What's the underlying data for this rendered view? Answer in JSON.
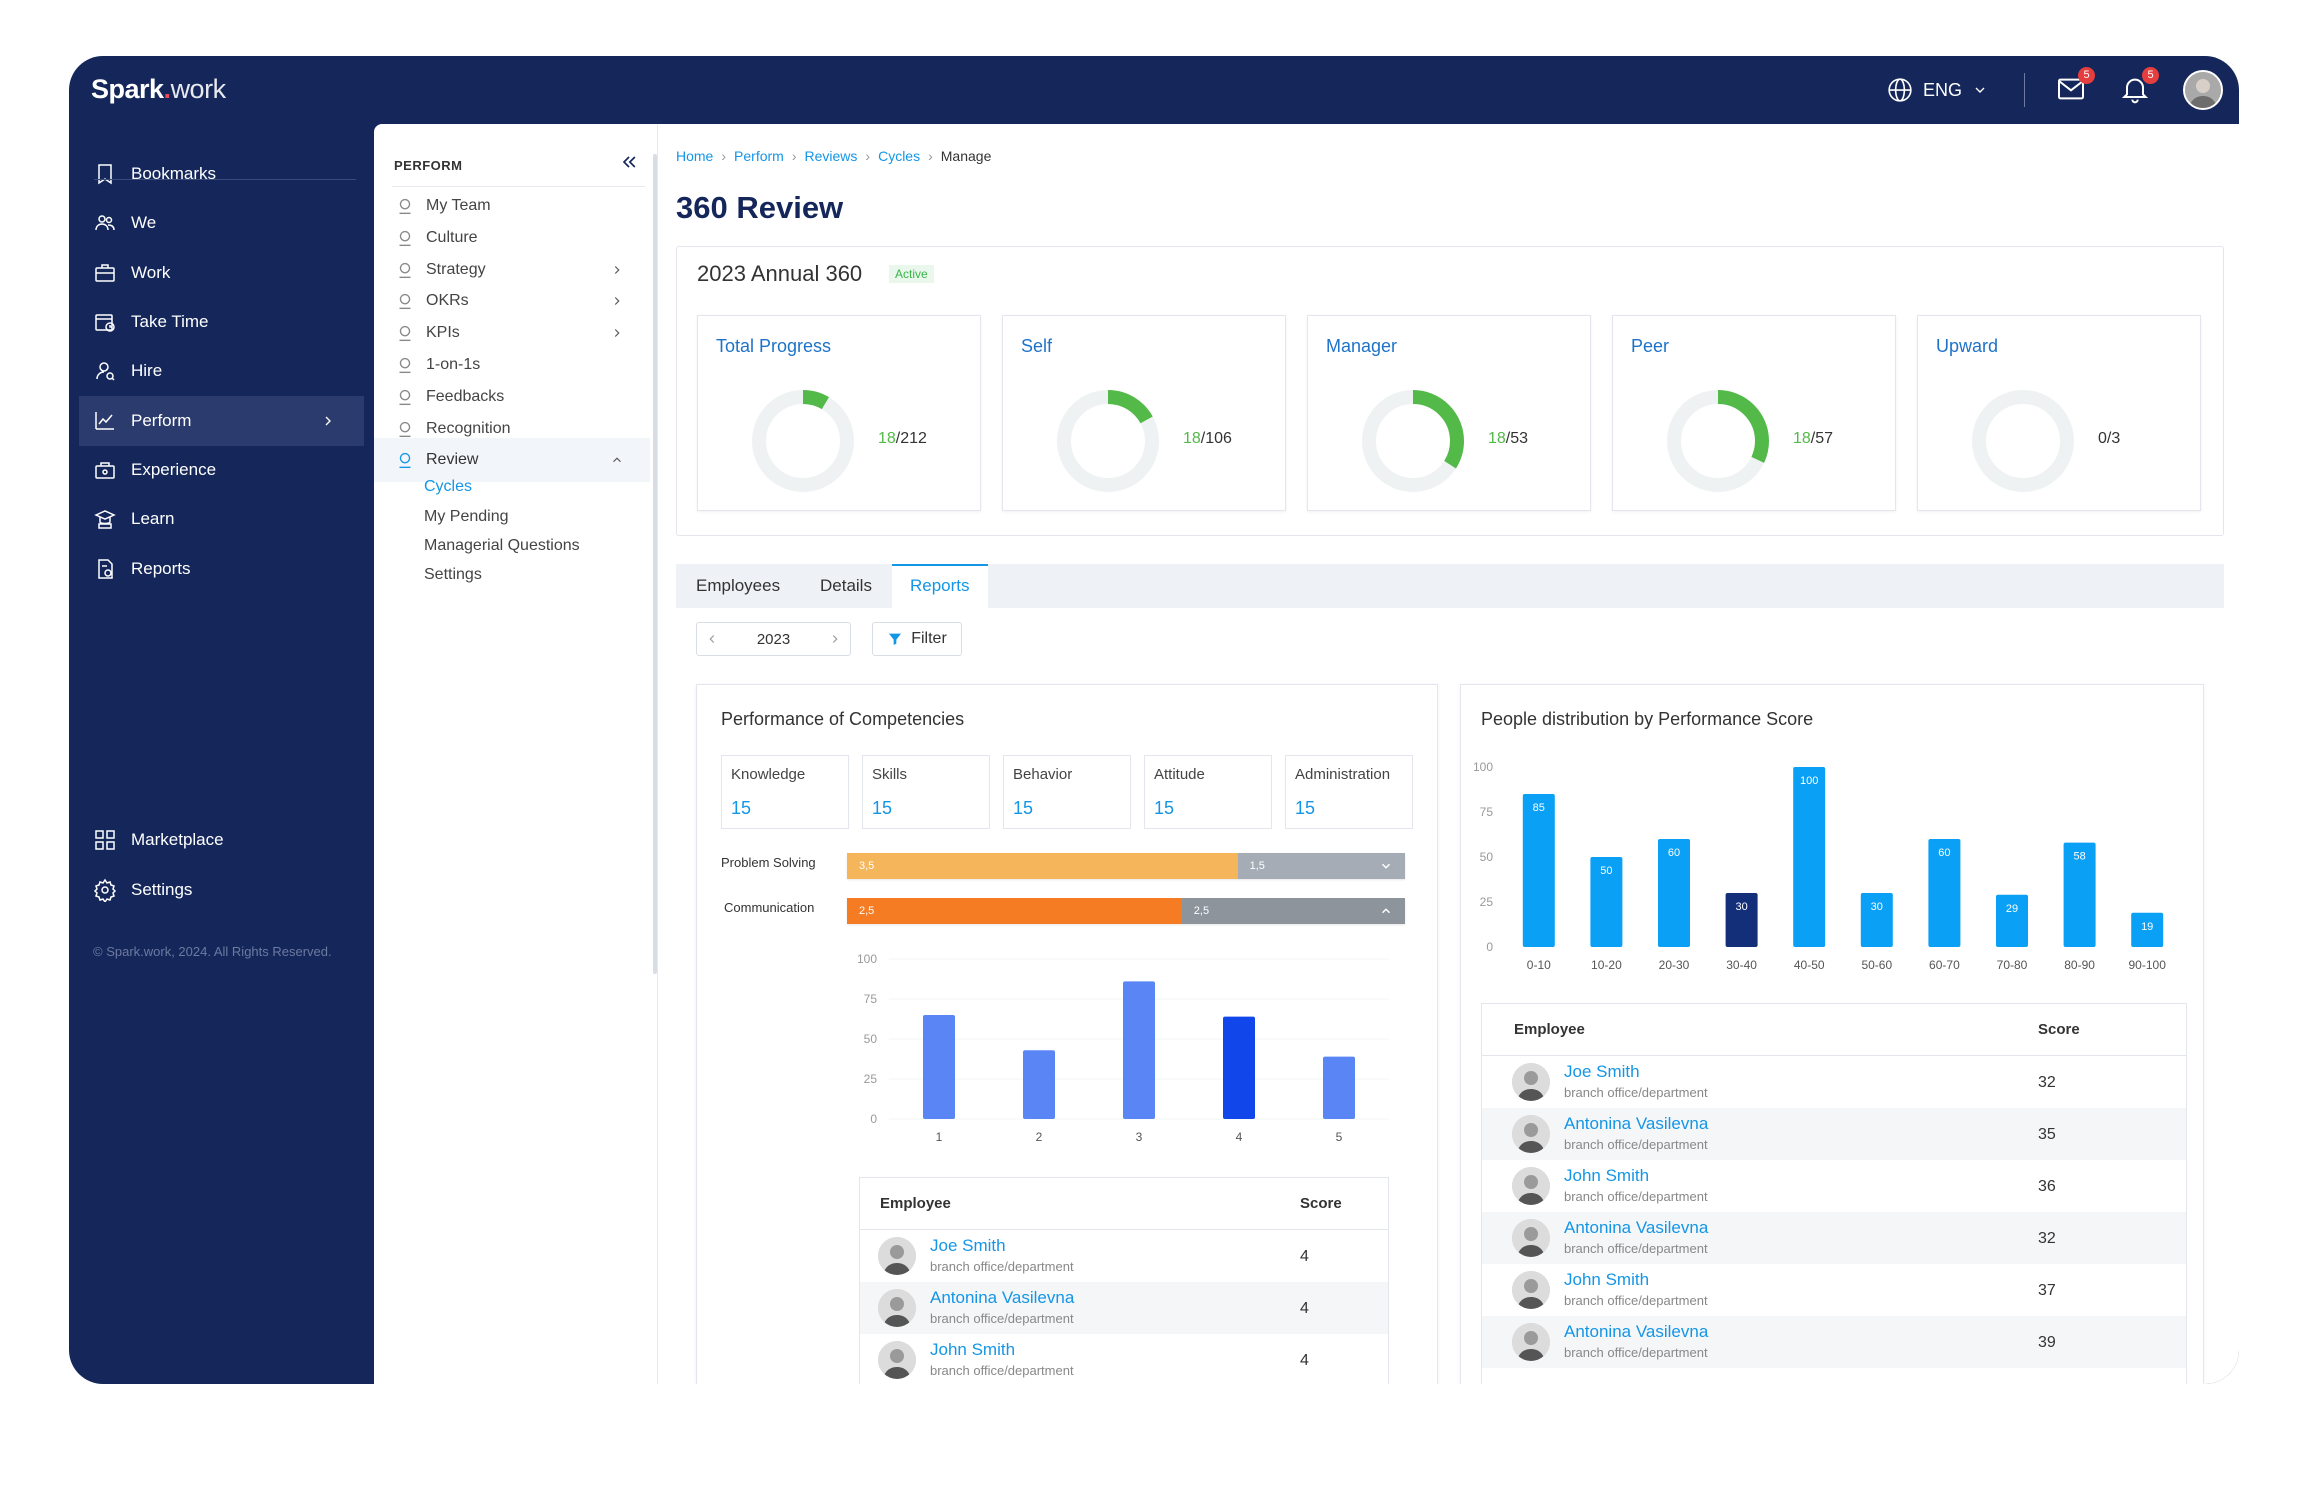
{
  "app": {
    "logo_main": "Spark",
    "logo_dot": ".",
    "logo_sub": "work"
  },
  "topbar": {
    "language": "ENG",
    "mail_badge": "5",
    "bell_badge": "5"
  },
  "nav": {
    "items": [
      {
        "label": "Bookmarks",
        "icon": "bookmark-icon"
      },
      {
        "label": "We",
        "icon": "people-icon"
      },
      {
        "label": "Work",
        "icon": "briefcase-icon"
      },
      {
        "label": "Take Time",
        "icon": "calendar-clock-icon"
      },
      {
        "label": "Hire",
        "icon": "user-search-icon"
      },
      {
        "label": "Perform",
        "icon": "chart-line-icon",
        "active": true
      },
      {
        "label": "Experience",
        "icon": "experience-icon"
      },
      {
        "label": "Learn",
        "icon": "learn-icon"
      },
      {
        "label": "Reports",
        "icon": "report-icon"
      }
    ],
    "bottom": [
      {
        "label": "Marketplace",
        "icon": "grid-icon"
      },
      {
        "label": "Settings",
        "icon": "gear-icon"
      }
    ],
    "copyright": "© Spark.work, 2024. All Rights Reserved."
  },
  "sub": {
    "heading": "PERFORM",
    "items": [
      {
        "label": "My Team"
      },
      {
        "label": "Culture"
      },
      {
        "label": "Strategy"
      },
      {
        "label": "OKRs"
      },
      {
        "label": "KPIs"
      },
      {
        "label": "1-on-1s"
      },
      {
        "label": "Feedbacks"
      },
      {
        "label": "Recognition"
      },
      {
        "label": "Review"
      }
    ],
    "children": [
      "Cycles",
      "My Pending",
      "Managerial Questions",
      "Settings"
    ]
  },
  "breadcrumb": [
    "Home",
    "Perform",
    "Reviews",
    "Cycles",
    "Manage"
  ],
  "page": {
    "title": "360 Review",
    "cycle": "2023 Annual 360",
    "status": "Active"
  },
  "cards": [
    {
      "title": "Total Progress",
      "done": "18",
      "total": "/212",
      "fraction": 0.085
    },
    {
      "title": "Self",
      "done": "18",
      "total": "/106",
      "fraction": 0.17
    },
    {
      "title": "Manager",
      "done": "18",
      "total": "/53",
      "fraction": 0.34
    },
    {
      "title": "Peer",
      "done": "18",
      "total": "/57",
      "fraction": 0.32
    },
    {
      "title": "Upward",
      "done": "",
      "total": "0/3",
      "fraction": 0
    }
  ],
  "tabs": [
    "Employees",
    "Details",
    "Reports"
  ],
  "filters": {
    "year": "2023",
    "filter_label": "Filter"
  },
  "competency": {
    "title": "Performance of Competencies",
    "boxes": [
      {
        "label": "Knowledge",
        "value": "15"
      },
      {
        "label": "Skills",
        "value": "15"
      },
      {
        "label": "Behavior",
        "value": "15"
      },
      {
        "label": "Attitude",
        "value": "15"
      },
      {
        "label": "Administration",
        "value": "15"
      }
    ],
    "bars": [
      {
        "label": "Problem Solving",
        "a": "3,5",
        "b": "1,5",
        "fa": 0.7,
        "ca": "#f5b55a",
        "cb": "#a6acb5"
      },
      {
        "label": "Communication",
        "a": "2,5",
        "b": "2,5",
        "fa": 0.6,
        "ca": "#f57c23",
        "cb": "#8e949c"
      }
    ],
    "table": {
      "col_employee": "Employee",
      "col_score": "Score",
      "rows": [
        {
          "name": "Joe Smith",
          "dept": "branch office/department",
          "score": "4"
        },
        {
          "name": "Antonina Vasilevna",
          "dept": "branch office/department",
          "score": "4"
        },
        {
          "name": "John Smith",
          "dept": "branch office/department",
          "score": "4"
        }
      ]
    }
  },
  "distribution": {
    "title": "People distribution by Performance Score",
    "table": {
      "col_employee": "Employee",
      "col_score": "Score",
      "rows": [
        {
          "name": "Joe Smith",
          "dept": "branch office/department",
          "score": "32"
        },
        {
          "name": "Antonina Vasilevna",
          "dept": "branch office/department",
          "score": "35"
        },
        {
          "name": "John Smith",
          "dept": "branch office/department",
          "score": "36"
        },
        {
          "name": "Antonina Vasilevna",
          "dept": "branch office/department",
          "score": "32"
        },
        {
          "name": "John Smith",
          "dept": "branch office/department",
          "score": "37"
        },
        {
          "name": "Antonina Vasilevna",
          "dept": "branch office/department",
          "score": "39"
        }
      ]
    }
  },
  "chart_data": [
    {
      "type": "bar",
      "categories": [
        "1",
        "2",
        "3",
        "4",
        "5"
      ],
      "values": [
        65,
        43,
        86,
        64,
        39
      ],
      "highlight_index": 3,
      "yticks": [
        "0",
        "25",
        "50",
        "75",
        "100"
      ],
      "ylim": [
        0,
        100
      ]
    },
    {
      "type": "bar",
      "title": "People distribution by Performance Score",
      "categories": [
        "0-10",
        "10-20",
        "20-30",
        "30-40",
        "40-50",
        "50-60",
        "60-70",
        "70-80",
        "80-90",
        "90-100"
      ],
      "values": [
        85,
        50,
        60,
        30,
        100,
        30,
        60,
        29,
        58,
        19
      ],
      "highlight_index": 3,
      "yticks": [
        "0",
        "25",
        "50",
        "75",
        "100"
      ],
      "ylim": [
        0,
        100
      ]
    }
  ],
  "colors": {
    "navy": "#15275a",
    "accent": "#1496e6",
    "green": "#53b948",
    "bar": "#5a86f5",
    "bar_dark": "#1146ea",
    "dist_bar": "#0aa0f5",
    "dist_dark": "#132f7a"
  }
}
